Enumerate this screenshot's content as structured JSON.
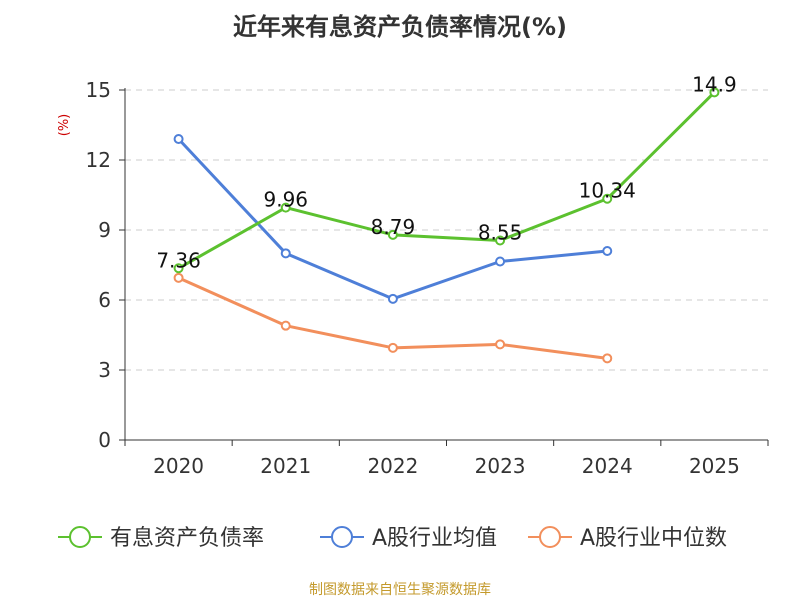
{
  "chart_data": {
    "type": "line",
    "title": "近年来有息资产负债率情况(%)",
    "ylabel": "(%)",
    "xlabel": "",
    "categories": [
      "2020",
      "2021",
      "2022",
      "2023",
      "2024",
      "2025"
    ],
    "ylim": [
      0,
      15
    ],
    "yticks": [
      0,
      3,
      6,
      9,
      12,
      15
    ],
    "grid": true,
    "legend_position": "bottom",
    "series": [
      {
        "name": "有息资产负债率",
        "color": "#5cc12f",
        "values": [
          7.36,
          9.96,
          8.79,
          8.55,
          10.34,
          14.9
        ],
        "labels": [
          "7.36",
          "9.96",
          "8.79",
          "8.55",
          "10.34",
          "14.9"
        ],
        "show_labels": true
      },
      {
        "name": "A股行业均值",
        "color": "#4e7fd8",
        "values": [
          12.9,
          8.0,
          6.05,
          7.65,
          8.1,
          null
        ],
        "show_labels": false
      },
      {
        "name": "A股行业中位数",
        "color": "#f28f5c",
        "values": [
          6.95,
          4.9,
          3.95,
          4.1,
          3.5,
          null
        ],
        "show_labels": false
      }
    ],
    "source": "制图数据来自恒生聚源数据库"
  }
}
